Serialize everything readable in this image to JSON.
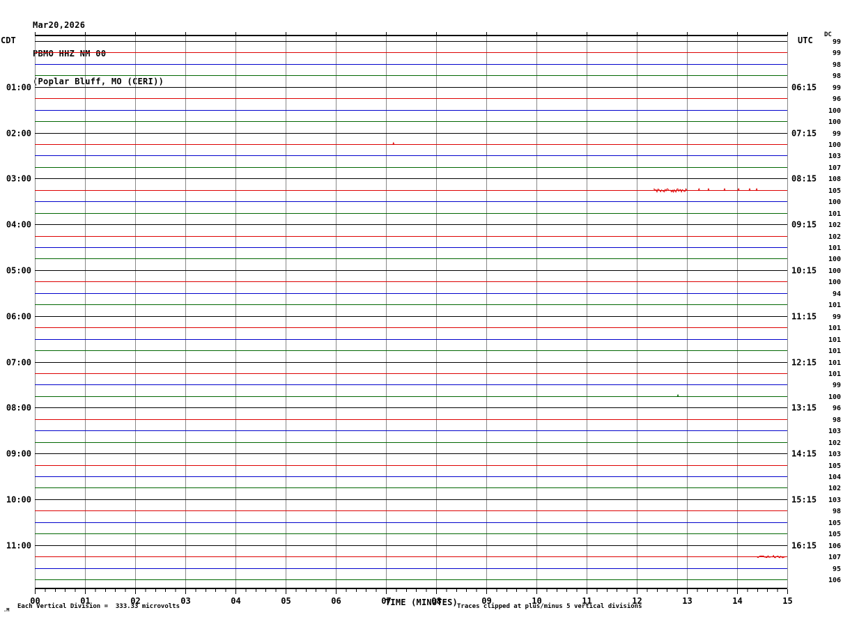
{
  "title": {
    "date": "Mar20,2026",
    "station": "PBMO HHZ NM 00",
    "location": "(Poplar Bluff, MO (CERI))"
  },
  "headers": {
    "left_tz": "CDT",
    "right_tz": "UTC",
    "dc_label": "DC"
  },
  "footer": {
    "scale_note": "Each Vertical Division =  333.33 microvolts",
    "clip_note": "Traces clipped at plus/minus 5 vertical divisions",
    "x_axis_label": "TIME (MINUTES)",
    "corner_mark": ".M"
  },
  "colors": {
    "trace_cycle": [
      "#000000",
      "#dd0000",
      "#0000cc",
      "#006600"
    ],
    "grid": "#888888",
    "border": "#000000",
    "text": "#000000"
  },
  "chart_data": {
    "type": "line",
    "subtype": "helicorder-seismogram",
    "title": "PBMO HHZ NM 00 (Poplar Bluff, MO (CERI)) Mar20,2026",
    "xlabel": "TIME (MINUTES)",
    "x_range_minutes": [
      0,
      15
    ],
    "x_tick_labels": [
      "00",
      "01",
      "02",
      "03",
      "04",
      "05",
      "06",
      "07",
      "08",
      "09",
      "10",
      "11",
      "12",
      "13",
      "14",
      "15"
    ],
    "x_minor_ticks_per_minute": 5,
    "minutes_per_trace": 15,
    "grid": true,
    "left_axis_timezone": "CDT",
    "right_axis_timezone": "UTC",
    "rows": [
      {
        "dc": "99"
      },
      {
        "dc": "99"
      },
      {
        "dc": "98"
      },
      {
        "dc": "98"
      },
      {
        "dc": "99",
        "cdt": "01:00",
        "utc": "06:15"
      },
      {
        "dc": "96"
      },
      {
        "dc": "100"
      },
      {
        "dc": "100"
      },
      {
        "dc": "99",
        "cdt": "02:00",
        "utc": "07:15"
      },
      {
        "dc": "100"
      },
      {
        "dc": "103"
      },
      {
        "dc": "107"
      },
      {
        "dc": "108",
        "cdt": "03:00",
        "utc": "08:15"
      },
      {
        "dc": "105"
      },
      {
        "dc": "100"
      },
      {
        "dc": "101"
      },
      {
        "dc": "102",
        "cdt": "04:00",
        "utc": "09:15"
      },
      {
        "dc": "102"
      },
      {
        "dc": "101"
      },
      {
        "dc": "100"
      },
      {
        "dc": "100",
        "cdt": "05:00",
        "utc": "10:15"
      },
      {
        "dc": "100"
      },
      {
        "dc": "94"
      },
      {
        "dc": "101"
      },
      {
        "dc": "99",
        "cdt": "06:00",
        "utc": "11:15"
      },
      {
        "dc": "101"
      },
      {
        "dc": "101"
      },
      {
        "dc": "101"
      },
      {
        "dc": "101",
        "cdt": "07:00",
        "utc": "12:15"
      },
      {
        "dc": "101"
      },
      {
        "dc": "99"
      },
      {
        "dc": "100"
      },
      {
        "dc": "96",
        "cdt": "08:00",
        "utc": "13:15"
      },
      {
        "dc": "98"
      },
      {
        "dc": "103"
      },
      {
        "dc": "102"
      },
      {
        "dc": "103",
        "cdt": "09:00",
        "utc": "14:15"
      },
      {
        "dc": "105"
      },
      {
        "dc": "104"
      },
      {
        "dc": "102"
      },
      {
        "dc": "103",
        "cdt": "10:00",
        "utc": "15:15"
      },
      {
        "dc": "98"
      },
      {
        "dc": "105"
      },
      {
        "dc": "105"
      },
      {
        "dc": "106",
        "cdt": "11:00",
        "utc": "16:15"
      },
      {
        "dc": "107"
      },
      {
        "dc": "95"
      },
      {
        "dc": "106"
      }
    ],
    "events": [
      {
        "row": 10,
        "kind": "blip",
        "minutes": [
          7.15
        ]
      },
      {
        "row": 14,
        "kind": "burst",
        "start": 12.33,
        "end": 13.0,
        "amplitude": 2.4
      },
      {
        "row": 14,
        "kind": "blip",
        "minutes": [
          13.24,
          13.43,
          13.75,
          14.03,
          14.25,
          14.39
        ]
      },
      {
        "row": 32,
        "kind": "blip",
        "minutes": [
          12.82
        ]
      },
      {
        "row": 46,
        "kind": "burst",
        "start": 14.4,
        "end": 14.97,
        "amplitude": 1.9
      }
    ]
  }
}
